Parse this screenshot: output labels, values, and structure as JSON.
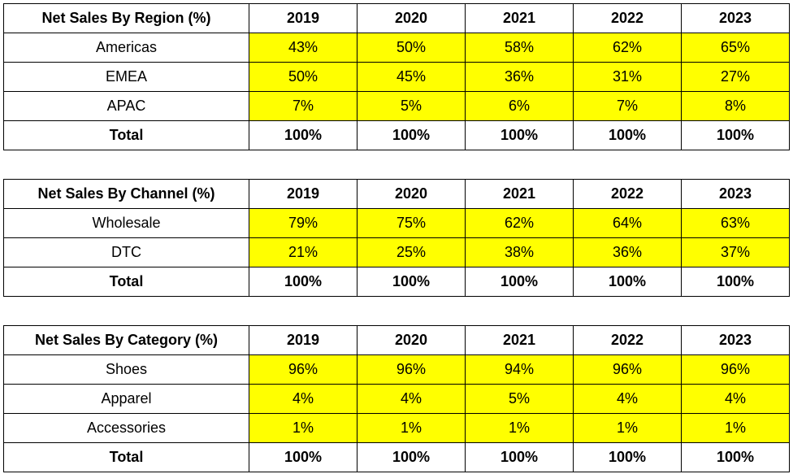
{
  "highlight_color": "#ffff00",
  "chart_data": [
    {
      "type": "table",
      "title": "Net Sales By Region (%)",
      "columns": [
        "2019",
        "2020",
        "2021",
        "2022",
        "2023"
      ],
      "rows": [
        {
          "label": "Americas",
          "values": [
            "43%",
            "50%",
            "58%",
            "62%",
            "65%"
          ]
        },
        {
          "label": "EMEA",
          "values": [
            "50%",
            "45%",
            "36%",
            "31%",
            "27%"
          ]
        },
        {
          "label": "APAC",
          "values": [
            "7%",
            "5%",
            "6%",
            "7%",
            "8%"
          ]
        }
      ],
      "total": {
        "label": "Total",
        "values": [
          "100%",
          "100%",
          "100%",
          "100%",
          "100%"
        ]
      }
    },
    {
      "type": "table",
      "title": "Net Sales By Channel (%)",
      "columns": [
        "2019",
        "2020",
        "2021",
        "2022",
        "2023"
      ],
      "rows": [
        {
          "label": "Wholesale",
          "values": [
            "79%",
            "75%",
            "62%",
            "64%",
            "63%"
          ]
        },
        {
          "label": "DTC",
          "values": [
            "21%",
            "25%",
            "38%",
            "36%",
            "37%"
          ]
        }
      ],
      "total": {
        "label": "Total",
        "values": [
          "100%",
          "100%",
          "100%",
          "100%",
          "100%"
        ]
      }
    },
    {
      "type": "table",
      "title": "Net Sales By Category (%)",
      "columns": [
        "2019",
        "2020",
        "2021",
        "2022",
        "2023"
      ],
      "rows": [
        {
          "label": "Shoes",
          "values": [
            "96%",
            "96%",
            "94%",
            "96%",
            "96%"
          ]
        },
        {
          "label": "Apparel",
          "values": [
            "4%",
            "4%",
            "5%",
            "4%",
            "4%"
          ]
        },
        {
          "label": "Accessories",
          "values": [
            "1%",
            "1%",
            "1%",
            "1%",
            "1%"
          ]
        }
      ],
      "total": {
        "label": "Total",
        "values": [
          "100%",
          "100%",
          "100%",
          "100%",
          "100%"
        ]
      }
    }
  ]
}
